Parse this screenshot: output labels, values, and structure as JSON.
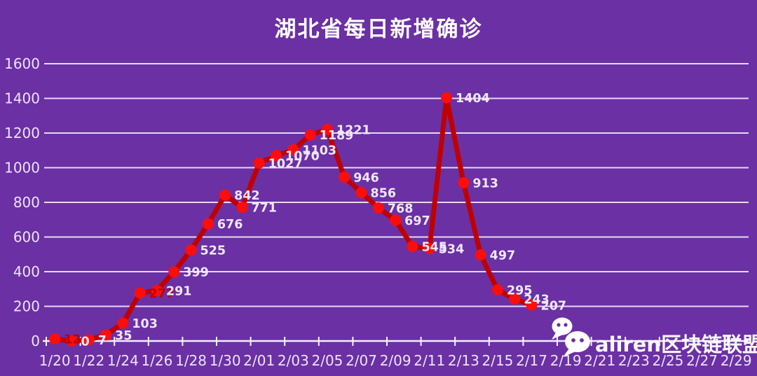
{
  "page": {
    "background_color": "#6B30A4"
  },
  "chart_data": {
    "type": "line",
    "title": "湖北省每日新增确诊",
    "x": [
      "1/20",
      "1/21",
      "1/22",
      "1/23",
      "1/24",
      "1/25",
      "1/26",
      "1/27",
      "1/28",
      "1/29",
      "1/30",
      "1/31",
      "2/01",
      "2/02",
      "2/03",
      "2/04",
      "2/05",
      "2/06",
      "2/07",
      "2/08",
      "2/09",
      "2/10",
      "2/11",
      "2/12",
      "2/13",
      "2/14",
      "2/15",
      "2/16",
      "2/17",
      "2/18",
      "2/19",
      "2/20",
      "2/21",
      "2/22",
      "2/23",
      "2/24",
      "2/25",
      "2/26",
      "2/27",
      "2/28",
      "2/29"
    ],
    "x_labels_shown": [
      "1/20",
      "1/22",
      "1/24",
      "1/26",
      "1/28",
      "1/30",
      "2/01",
      "2/03",
      "2/05",
      "2/07",
      "2/09",
      "2/11",
      "2/13",
      "2/15",
      "2/17",
      "2/19",
      "2/21",
      "2/23",
      "2/25",
      "2/27",
      "2/29"
    ],
    "x_label_interval": 2,
    "series": [
      {
        "name": "每日新增确诊",
        "line_color": "#C00000",
        "marker_color": "#FF0D0D",
        "values": [
          12,
          0,
          7,
          35,
          103,
          277,
          291,
          399,
          525,
          676,
          842,
          771,
          1027,
          1070,
          1103,
          1189,
          1221,
          946,
          856,
          768,
          697,
          545,
          534,
          1404,
          913,
          497,
          295,
          243,
          207,
          null,
          null,
          null,
          null,
          null,
          null,
          null,
          null,
          null,
          null,
          null,
          null
        ]
      }
    ],
    "yticks": [
      0,
      200,
      400,
      600,
      800,
      1000,
      1200,
      1400,
      1600
    ],
    "ylim": [
      0,
      1600
    ],
    "grid": "horizontal",
    "legend": "none",
    "data_labels": {
      "visible": true,
      "color": "#EFE7F9",
      "special_color": "#C00000",
      "special_indices": [
        0,
        5
      ]
    },
    "axis_color": "#F5F0FB",
    "grid_color": "#F3EDFA",
    "tick_label_color": "#EDE3F9",
    "title_color": "#FFFFFF"
  },
  "watermark": {
    "icon": "wechat-icon",
    "text": "aliren区块链联盟",
    "color": "#FFFFFF"
  }
}
